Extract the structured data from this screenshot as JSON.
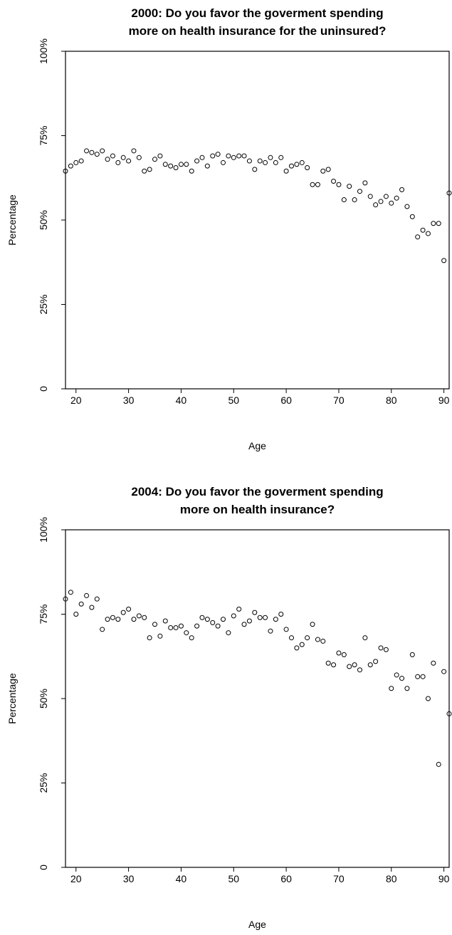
{
  "chart_data": [
    {
      "type": "scatter",
      "title": [
        "2000: Do you favor the goverment spending",
        "more on health insurance for the uninsured?"
      ],
      "xlabel": "Age",
      "ylabel": "Percentage",
      "xlim": [
        18,
        91
      ],
      "ylim": [
        0,
        100
      ],
      "xticks": [
        20,
        30,
        40,
        50,
        60,
        70,
        80,
        90
      ],
      "xtick_labels": [
        "20",
        "30",
        "40",
        "50",
        "60",
        "70",
        "80",
        "90"
      ],
      "yticks": [
        0,
        25,
        50,
        75,
        100
      ],
      "ytick_labels": [
        "0",
        "25%",
        "50%",
        "75%",
        "100%"
      ],
      "grid": false,
      "x": [
        18,
        19,
        20,
        21,
        22,
        23,
        24,
        25,
        26,
        27,
        28,
        29,
        30,
        31,
        32,
        33,
        34,
        35,
        36,
        37,
        38,
        39,
        40,
        41,
        42,
        43,
        44,
        45,
        46,
        47,
        48,
        49,
        50,
        51,
        52,
        53,
        54,
        55,
        56,
        57,
        58,
        59,
        60,
        61,
        62,
        63,
        64,
        65,
        66,
        67,
        68,
        69,
        70,
        71,
        72,
        73,
        74,
        75,
        76,
        77,
        78,
        79,
        80,
        81,
        82,
        83,
        84,
        85,
        86,
        87,
        88,
        89,
        90,
        91
      ],
      "y": [
        64.5,
        66,
        67,
        67.5,
        70.5,
        70,
        69.5,
        70.5,
        68,
        69,
        67,
        68.5,
        67.5,
        70.5,
        68.5,
        64.5,
        65,
        68,
        69,
        66.5,
        66,
        65.5,
        66.5,
        66.5,
        64.5,
        67.5,
        68.5,
        66,
        69,
        69.5,
        67,
        69,
        68.5,
        69,
        69,
        67.5,
        65,
        67.5,
        67,
        68.5,
        67,
        68.5,
        64.5,
        66,
        66.5,
        67,
        65.5,
        60.5,
        60.5,
        64.5,
        65,
        61.5,
        60.5,
        56,
        60,
        56,
        58.5,
        61,
        57,
        54.5,
        55.5,
        57,
        55,
        56.5,
        59,
        54,
        51,
        45,
        47,
        46,
        49,
        49,
        38,
        58
      ]
    },
    {
      "type": "scatter",
      "title": [
        "2004: Do you favor the goverment spending",
        "more on health insurance?"
      ],
      "xlabel": "Age",
      "ylabel": "Percentage",
      "xlim": [
        18,
        91
      ],
      "ylim": [
        0,
        100
      ],
      "xticks": [
        20,
        30,
        40,
        50,
        60,
        70,
        80,
        90
      ],
      "xtick_labels": [
        "20",
        "30",
        "40",
        "50",
        "60",
        "70",
        "80",
        "90"
      ],
      "yticks": [
        0,
        25,
        50,
        75,
        100
      ],
      "ytick_labels": [
        "0",
        "25%",
        "50%",
        "75%",
        "100%"
      ],
      "grid": false,
      "x": [
        18,
        19,
        20,
        21,
        22,
        23,
        24,
        25,
        26,
        27,
        28,
        29,
        30,
        31,
        32,
        33,
        34,
        35,
        36,
        37,
        38,
        39,
        40,
        41,
        42,
        43,
        44,
        45,
        46,
        47,
        48,
        49,
        50,
        51,
        52,
        53,
        54,
        55,
        56,
        57,
        58,
        59,
        60,
        61,
        62,
        63,
        64,
        65,
        66,
        67,
        68,
        69,
        70,
        71,
        72,
        73,
        74,
        75,
        76,
        77,
        78,
        79,
        80,
        81,
        82,
        83,
        84,
        85,
        86,
        87,
        88,
        89,
        90,
        91
      ],
      "y": [
        79.5,
        81.5,
        75,
        78,
        80.5,
        77,
        79.5,
        70.5,
        73.5,
        74,
        73.5,
        75.5,
        76.5,
        73.5,
        74.5,
        74,
        68,
        72,
        68.5,
        73,
        71,
        71,
        71.5,
        69.5,
        68,
        71.5,
        74,
        73.5,
        72.5,
        71.5,
        73.5,
        69.5,
        74.5,
        76.5,
        72,
        73,
        75.5,
        74,
        74,
        70,
        73.5,
        75,
        70.5,
        68,
        65,
        66,
        68,
        72,
        67.5,
        67,
        60.5,
        60,
        63.5,
        63,
        59.5,
        60,
        58.5,
        68,
        60,
        61,
        65,
        64.5,
        53,
        57,
        56,
        53,
        63,
        56.5,
        56.5,
        50,
        60.5,
        30.5,
        58,
        45.5
      ]
    }
  ]
}
